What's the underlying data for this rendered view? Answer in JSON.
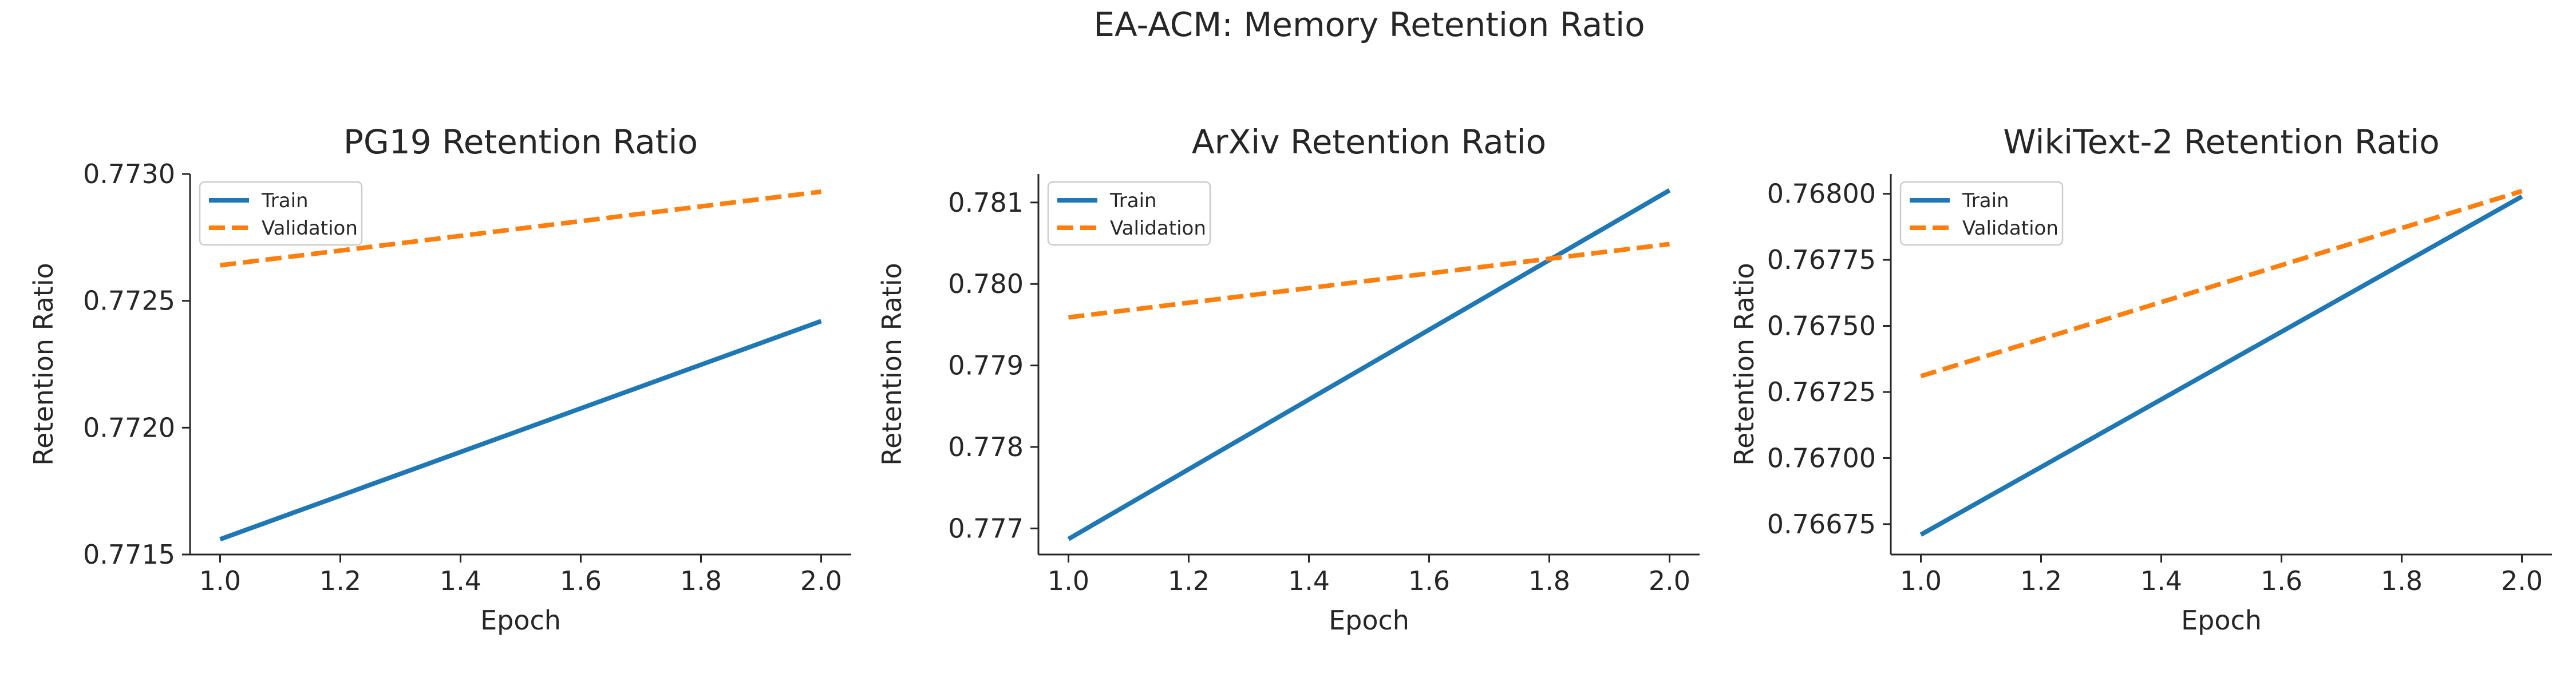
{
  "suptitle": "EA-ACM: Memory Retention Ratio",
  "colors": {
    "train": "#1f77b4",
    "validation": "#ff7f0e",
    "axis": "#262626",
    "background": "#ffffff"
  },
  "chart_data": [
    {
      "type": "line",
      "title": "PG19 Retention Ratio",
      "xlabel": "Epoch",
      "ylabel": "Retention Ratio",
      "xlim": [
        0.95,
        2.05
      ],
      "ylim": [
        0.7715,
        0.773
      ],
      "xticks": [
        1.0,
        1.2,
        1.4,
        1.6,
        1.8,
        2.0
      ],
      "xtick_labels": [
        "1.0",
        "1.2",
        "1.4",
        "1.6",
        "1.8",
        "2.0"
      ],
      "yticks": [
        0.7715,
        0.772,
        0.7725,
        0.773
      ],
      "ytick_labels": [
        "0.7715",
        "0.7720",
        "0.7725",
        "0.7730"
      ],
      "x": [
        1.0,
        2.0
      ],
      "series": [
        {
          "name": "Train",
          "style": "solid",
          "color": "#1f77b4",
          "values": [
            0.77156,
            0.77242
          ]
        },
        {
          "name": "Validation",
          "style": "dashed",
          "color": "#ff7f0e",
          "values": [
            0.77264,
            0.77293
          ]
        }
      ],
      "legend": "upper-left",
      "grid": false
    },
    {
      "type": "line",
      "title": "ArXiv Retention Ratio",
      "xlabel": "Epoch",
      "ylabel": "Retention Ratio",
      "xlim": [
        0.95,
        2.05
      ],
      "ylim": [
        0.77668,
        0.78135
      ],
      "xticks": [
        1.0,
        1.2,
        1.4,
        1.6,
        1.8,
        2.0
      ],
      "xtick_labels": [
        "1.0",
        "1.2",
        "1.4",
        "1.6",
        "1.8",
        "2.0"
      ],
      "yticks": [
        0.777,
        0.778,
        0.779,
        0.78,
        0.781
      ],
      "ytick_labels": [
        "0.777",
        "0.778",
        "0.779",
        "0.780",
        "0.781"
      ],
      "x": [
        1.0,
        2.0
      ],
      "series": [
        {
          "name": "Train",
          "style": "solid",
          "color": "#1f77b4",
          "values": [
            0.77687,
            0.78115
          ]
        },
        {
          "name": "Validation",
          "style": "dashed",
          "color": "#ff7f0e",
          "values": [
            0.77959,
            0.78049
          ]
        }
      ],
      "legend": "upper-left",
      "grid": false
    },
    {
      "type": "line",
      "title": "WikiText-2 Retention Ratio",
      "xlabel": "Epoch",
      "ylabel": "Retention Ratio",
      "xlim": [
        0.95,
        2.05
      ],
      "ylim": [
        0.766635,
        0.768075
      ],
      "xticks": [
        1.0,
        1.2,
        1.4,
        1.6,
        1.8,
        2.0
      ],
      "xtick_labels": [
        "1.0",
        "1.2",
        "1.4",
        "1.6",
        "1.8",
        "2.0"
      ],
      "yticks": [
        0.76675,
        0.767,
        0.76725,
        0.7675,
        0.76775,
        0.768
      ],
      "ytick_labels": [
        "0.76675",
        "0.76700",
        "0.76725",
        "0.76750",
        "0.76775",
        "0.76800"
      ],
      "x": [
        1.0,
        2.0
      ],
      "series": [
        {
          "name": "Train",
          "style": "solid",
          "color": "#1f77b4",
          "values": [
            0.76671,
            0.76799
          ]
        },
        {
          "name": "Validation",
          "style": "dashed",
          "color": "#ff7f0e",
          "values": [
            0.76731,
            0.76801
          ]
        }
      ],
      "legend": "upper-left",
      "grid": false
    }
  ]
}
